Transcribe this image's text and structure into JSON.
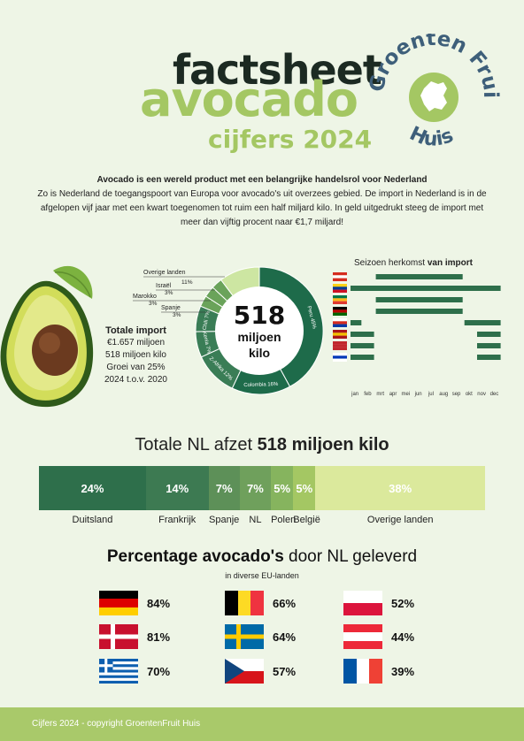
{
  "header": {
    "line1": "factsheet",
    "line2": "avocado",
    "line3": "cijfers 2024",
    "logo_word1": "Groenten",
    "logo_word2": "Fruit",
    "logo_word3": "Huis"
  },
  "intro": {
    "headline": "Avocado is een wereld product met een belangrijke handelsrol voor Nederland",
    "body": "Zo is Nederland de toegangspoort van Europa voor avocado's uit overzees gebied. De import in Nederland is in de afgelopen vijf jaar met een kwart toegenomen tot ruim een half miljard kilo. In geld uitgedrukt steeg de import met meer dan vijftig procent naar €1,7 miljard!"
  },
  "import_total": {
    "center_value": "518",
    "center_unit1": "miljoen",
    "center_unit2": "kilo",
    "heading": "Totale import",
    "line1": "€1.657 miljoen",
    "line2": "518 miljoen kilo",
    "line3": "Groei van 25%",
    "line4": "2024 t.o.v. 2020",
    "callouts": [
      {
        "name": "Overige landen",
        "pct": "11%"
      },
      {
        "name": "Israël",
        "pct": "3%"
      },
      {
        "name": "Marokko",
        "pct": "3%"
      },
      {
        "name": "Spanje",
        "pct": "3%"
      }
    ],
    "ring_labels": [
      "Peru 45%",
      "Colombia 16%",
      "Z-Afrika 12%",
      "Kenia 7%",
      "Chili 7%"
    ]
  },
  "chart_data": [
    {
      "type": "pie",
      "title": "",
      "categories": [
        "Peru",
        "Colombia",
        "Z-Afrika",
        "Kenia",
        "Chili",
        "Spanje",
        "Marokko",
        "Israël",
        "Overige landen"
      ],
      "values": [
        45,
        16,
        12,
        7,
        7,
        3,
        3,
        3,
        11
      ],
      "colors": [
        "#1e6b4a",
        "#1e6b4a",
        "#3a7d56",
        "#3a7d56",
        "#3a7d56",
        "#6aa35a",
        "#6aa35a",
        "#6aa35a",
        "#cde6a2"
      ]
    }
  ],
  "season": {
    "title_plain": "Seizoen herkomst ",
    "title_bold": "van import",
    "months": [
      "jan",
      "feb",
      "mrt",
      "apr",
      "mei",
      "jun",
      "jul",
      "aug",
      "sep",
      "okt",
      "nov",
      "dec"
    ],
    "rows": [
      {
        "country": "Peru",
        "flag": [
          "#d52b1e",
          "#ffffff",
          "#d52b1e"
        ],
        "start": 3,
        "end": 9
      },
      {
        "country": "Colombia",
        "flag": [
          "#fcd116",
          "#003893",
          "#ce1126"
        ],
        "start": 1,
        "end": 12
      },
      {
        "country": "Zuid-Afrika",
        "flag": [
          "#007749",
          "#ffb81c",
          "#de3831"
        ],
        "start": 3,
        "end": 9
      },
      {
        "country": "Kenia",
        "flag": [
          "#000000",
          "#bb0000",
          "#006600"
        ],
        "start": 3,
        "end": 9
      },
      {
        "country": "Chili",
        "flag": [
          "#ffffff",
          "#d52b1e",
          "#0039a6"
        ],
        "start": 1,
        "end": 1,
        "start2": 10,
        "end2": 12
      },
      {
        "country": "Spanje",
        "flag": [
          "#aa151b",
          "#f1bf00",
          "#aa151b"
        ],
        "start": 1,
        "end": 2,
        "start2": 11,
        "end2": 12
      },
      {
        "country": "Marokko",
        "flag": [
          "#c1272d",
          "#c1272d",
          "#c1272d"
        ],
        "start": 1,
        "end": 2,
        "start2": 11,
        "end2": 12
      },
      {
        "country": "Israël",
        "flag": [
          "#ffffff",
          "#0038b8",
          "#ffffff"
        ],
        "start": 1,
        "end": 2,
        "start2": 11,
        "end2": 12
      }
    ]
  },
  "afzet": {
    "title_plain": "Totale NL afzet ",
    "title_bold": "518 miljoen kilo",
    "segments": [
      {
        "pct": "24%",
        "label": "Duitsland",
        "value": 24,
        "color": "#2e6f4b"
      },
      {
        "pct": "14%",
        "label": "Frankrijk",
        "value": 14,
        "color": "#3d7a52"
      },
      {
        "pct": "7%",
        "label": "Spanje",
        "value": 7,
        "color": "#5d9058"
      },
      {
        "pct": "7%",
        "label": "NL",
        "value": 7,
        "color": "#6fa05c"
      },
      {
        "pct": "5%",
        "label": "Polen",
        "value": 5,
        "color": "#86b45e"
      },
      {
        "pct": "5%",
        "label": "België",
        "value": 5,
        "color": "#a4c763"
      },
      {
        "pct": "38%",
        "label": "Overige landen",
        "value": 38,
        "color": "#dbe99c"
      }
    ]
  },
  "percentage": {
    "title_bold": "Percentage avocado's",
    "title_plain": " door NL geleverd",
    "subtitle": "in diverse EU-landen",
    "countries": [
      {
        "pct": "84%",
        "flag": "de"
      },
      {
        "pct": "66%",
        "flag": "be"
      },
      {
        "pct": "52%",
        "flag": "pl"
      },
      {
        "pct": "81%",
        "flag": "dk"
      },
      {
        "pct": "64%",
        "flag": "se"
      },
      {
        "pct": "44%",
        "flag": "at"
      },
      {
        "pct": "70%",
        "flag": "gr"
      },
      {
        "pct": "57%",
        "flag": "cz"
      },
      {
        "pct": "39%",
        "flag": "fr"
      }
    ]
  },
  "footer": {
    "text": "Cijfers 2024 - copyright GroentenFruit Huis"
  },
  "colors": {
    "background": "#eef5e6",
    "dark_green": "#1e6b4a",
    "light_green": "#a4c763",
    "footer": "#a9c96a",
    "logo_blue": "#3e5f7a"
  }
}
